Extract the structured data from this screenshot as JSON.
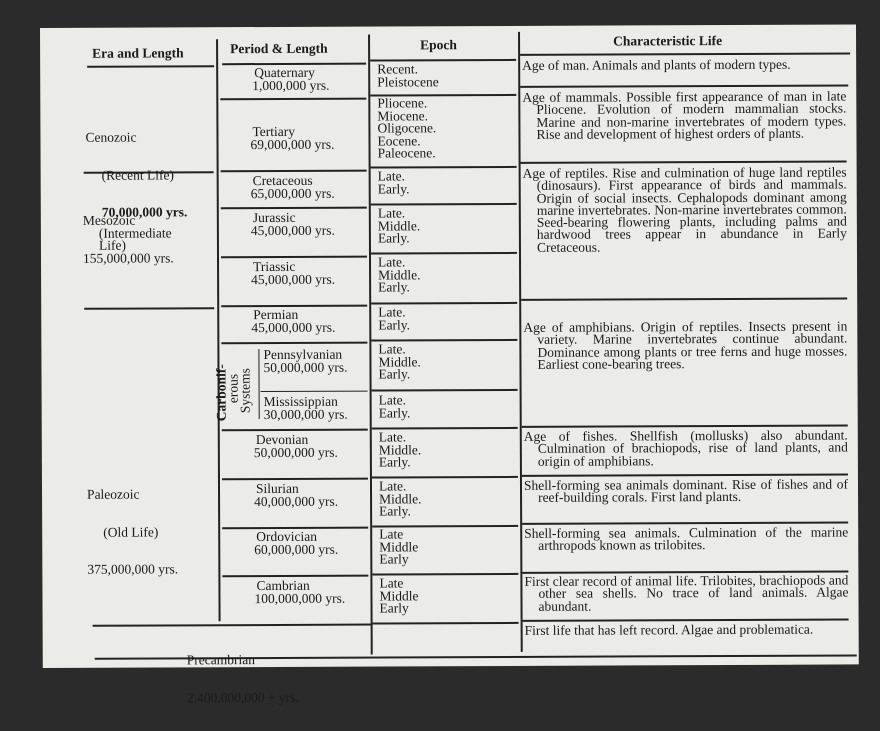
{
  "headers": {
    "era": "Era and Length",
    "period": "Period & Length",
    "epoch": "Epoch",
    "life": "Characteristic Life"
  },
  "eras": [
    {
      "name": "Cenozoic",
      "subtitle": "(Recent Life)",
      "length": "70,000,000 yrs."
    },
    {
      "name": "Mesozoic",
      "subtitle": "(Intermediate Life)",
      "length": "155,000,000 yrs."
    },
    {
      "name": "Paleozoic",
      "subtitle": "(Old Life)",
      "length": "375,000,000 yrs."
    }
  ],
  "periods": [
    {
      "name": "Quaternary",
      "length": "1,000,000 yrs.",
      "epochs": "Recent.\nPleistocene"
    },
    {
      "name": "Tertiary",
      "length": "69,000,000 yrs.",
      "epochs": "Pliocene.\nMiocene.\nOligocene.\nEocene.\nPaleocene."
    },
    {
      "name": "Cretaceous",
      "length": "65,000,000 yrs.",
      "epochs": "Late.\nEarly."
    },
    {
      "name": "Jurassic",
      "length": "45,000,000 yrs.",
      "epochs": "Late.\nMiddle.\nEarly."
    },
    {
      "name": "Triassic",
      "length": "45,000,000 yrs.",
      "epochs": "Late.\nMiddle.\nEarly."
    },
    {
      "name": "Permian",
      "length": "45,000,000 yrs.",
      "epochs": "Late.\nEarly."
    },
    {
      "name": "Pennsylvanian",
      "length": "50,000,000 yrs.",
      "epochs": "Late.\nMiddle.\nEarly."
    },
    {
      "name": "Mississippian",
      "length": "30,000,000 yrs.",
      "epochs": "Late.\nEarly."
    },
    {
      "name": "Devonian",
      "length": "50,000,000 yrs.",
      "epochs": "Late.\nMiddle.\nEarly."
    },
    {
      "name": "Silurian",
      "length": "40,000,000 yrs.",
      "epochs": "Late.\nMiddle.\nEarly."
    },
    {
      "name": "Ordovician",
      "length": "60,000,000 yrs.",
      "epochs": "Late\nMiddle\nEarly"
    },
    {
      "name": "Cambrian",
      "length": "100,000,000 yrs.",
      "epochs": "Late\nMiddle\nEarly"
    }
  ],
  "carboniferous": {
    "line1": "Carbonif-",
    "line2": "erous",
    "line3": "Systems"
  },
  "precambrian": {
    "name": "Precambrian",
    "length": "2,400,000,000 + yrs."
  },
  "life": [
    "Age of man. Animals and plants of modern types.",
    "Age of mammals. Possible first appearance of man in late Pliocene. Evolution of modern mammalian stocks. Marine and non-marine invertebrates of modern types. Rise and development of highest orders of plants.",
    "Age of reptiles. Rise and culmination of huge land reptiles (dinosaurs). First appearance of birds and mammals. Origin of social insects. Cephalopods dominant among marine invertebrates. Non-marine invertebrates common. Seed-bearing flowering plants, including palms and hardwood trees appear in abundance in Early Cretaceous.",
    "Age of amphibians. Origin of reptiles. Insects present in variety. Marine invertebrates continue abundant. Dominance among plants or tree ferns and huge mosses. Earliest cone-bearing trees.",
    "Age of fishes. Shellfish (mollusks) also abundant. Culmination of brachiopods, rise of land plants, and origin of amphibians.",
    "Shell-forming sea animals dominant. Rise of fishes and of reef-building corals. First land plants.",
    "Shell-forming sea animals. Culmination of the marine arthropods known as trilobites.",
    "First clear record of animal life. Trilobites, brachiopods and other sea shells. No trace of land animals. Algae abundant.",
    "First life that has left record. Algae and problematica."
  ]
}
